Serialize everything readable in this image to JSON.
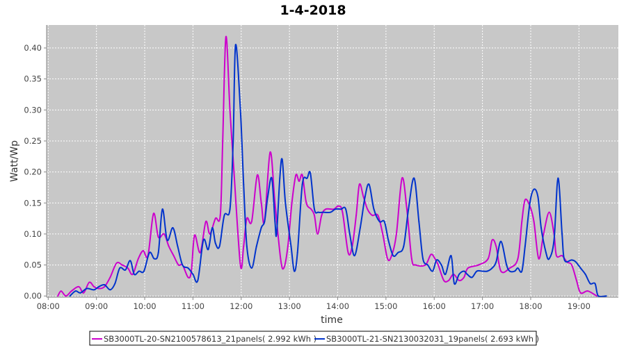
{
  "chart_data": {
    "type": "line",
    "title": "1-4-2018",
    "xlabel": "time",
    "ylabel": "Watt/Wp",
    "xlim": [
      "07:58",
      "19:49"
    ],
    "ylim": [
      -0.002,
      0.437
    ],
    "x_ticks": [
      "08:00",
      "09:00",
      "10:00",
      "11:00",
      "12:00",
      "13:00",
      "14:00",
      "15:00",
      "16:00",
      "17:00",
      "18:00",
      "19:00"
    ],
    "y_ticks": [
      "0.00",
      "0.05",
      "0.10",
      "0.15",
      "0.20",
      "0.25",
      "0.30",
      "0.35",
      "0.40"
    ],
    "grid": true,
    "legend_position": "bottom",
    "background": "#c8c8c8",
    "series": [
      {
        "name": "SB3000TL-20-SN2100578613_21panels( 2.992 kWh )",
        "color": "#cc00cc",
        "x": [
          "08:12",
          "08:16",
          "08:22",
          "08:29",
          "08:38",
          "08:44",
          "08:51",
          "08:57",
          "09:03",
          "09:10",
          "09:17",
          "09:25",
          "09:32",
          "09:39",
          "09:45",
          "09:52",
          "09:58",
          "10:04",
          "10:11",
          "10:17",
          "10:24",
          "10:30",
          "10:36",
          "10:42",
          "10:47",
          "10:54",
          "10:58",
          "11:02",
          "11:09",
          "11:16",
          "11:21",
          "11:28",
          "11:34",
          "11:37",
          "11:41",
          "11:46",
          "11:51",
          "11:59",
          "12:03",
          "12:07",
          "12:13",
          "12:20",
          "12:25",
          "12:29",
          "12:36",
          "12:42",
          "12:49",
          "12:53",
          "12:58",
          "13:03",
          "13:08",
          "13:12",
          "13:16",
          "13:21",
          "13:27",
          "13:31",
          "13:35",
          "13:40",
          "13:45",
          "13:55",
          "14:01",
          "14:06",
          "14:13",
          "14:18",
          "14:23",
          "14:27",
          "14:32",
          "14:37",
          "14:43",
          "14:50",
          "14:56",
          "15:02",
          "15:07",
          "15:13",
          "15:20",
          "15:26",
          "15:32",
          "15:37",
          "15:49",
          "15:56",
          "16:01",
          "16:05",
          "16:12",
          "16:18",
          "16:24",
          "16:31",
          "16:37",
          "16:42",
          "16:55",
          "17:07",
          "17:12",
          "17:17",
          "17:23",
          "17:34",
          "17:44",
          "17:49",
          "17:53",
          "17:59",
          "18:04",
          "18:10",
          "18:16",
          "18:23",
          "18:29",
          "18:32",
          "18:39",
          "18:45",
          "18:51",
          "18:57",
          "19:02",
          "19:11",
          "19:22"
        ],
        "y": [
          0.0,
          0.008,
          0.0,
          0.008,
          0.015,
          0.005,
          0.022,
          0.015,
          0.012,
          0.015,
          0.03,
          0.053,
          0.05,
          0.045,
          0.035,
          0.06,
          0.073,
          0.065,
          0.133,
          0.095,
          0.1,
          0.08,
          0.065,
          0.05,
          0.05,
          0.03,
          0.04,
          0.098,
          0.07,
          0.12,
          0.1,
          0.125,
          0.13,
          0.25,
          0.418,
          0.3,
          0.2,
          0.05,
          0.08,
          0.125,
          0.12,
          0.195,
          0.15,
          0.12,
          0.232,
          0.15,
          0.06,
          0.045,
          0.08,
          0.15,
          0.195,
          0.185,
          0.195,
          0.15,
          0.14,
          0.13,
          0.1,
          0.13,
          0.14,
          0.14,
          0.145,
          0.135,
          0.07,
          0.08,
          0.13,
          0.18,
          0.16,
          0.14,
          0.13,
          0.13,
          0.1,
          0.06,
          0.065,
          0.1,
          0.19,
          0.14,
          0.06,
          0.05,
          0.05,
          0.067,
          0.06,
          0.05,
          0.025,
          0.025,
          0.035,
          0.025,
          0.03,
          0.045,
          0.05,
          0.06,
          0.09,
          0.08,
          0.04,
          0.045,
          0.06,
          0.12,
          0.155,
          0.145,
          0.12,
          0.06,
          0.1,
          0.135,
          0.1,
          0.065,
          0.065,
          0.055,
          0.05,
          0.025,
          0.005,
          0.008,
          0.0
        ]
      },
      {
        "name": "SB3000TL-21-SN2130032031_19panels( 2.693 kWh )",
        "color": "#0033cc",
        "x": [
          "08:27",
          "08:34",
          "08:40",
          "08:48",
          "08:57",
          "09:03",
          "09:10",
          "09:17",
          "09:23",
          "09:29",
          "09:36",
          "09:42",
          "09:47",
          "09:53",
          "09:59",
          "10:06",
          "10:12",
          "10:17",
          "10:22",
          "10:28",
          "10:35",
          "10:41",
          "10:47",
          "10:54",
          "11:00",
          "11:06",
          "11:13",
          "11:19",
          "11:24",
          "11:28",
          "11:33",
          "11:39",
          "11:46",
          "11:50",
          "11:53",
          "11:59",
          "12:03",
          "12:07",
          "12:13",
          "12:19",
          "12:25",
          "12:29",
          "12:33",
          "12:38",
          "12:42",
          "12:44",
          "12:48",
          "12:51",
          "12:55",
          "13:02",
          "13:06",
          "13:10",
          "13:16",
          "13:22",
          "13:26",
          "13:31",
          "13:36",
          "13:42",
          "13:51",
          "13:57",
          "14:04",
          "14:10",
          "14:15",
          "14:21",
          "14:28",
          "14:34",
          "14:39",
          "14:45",
          "14:52",
          "14:58",
          "15:03",
          "15:09",
          "15:15",
          "15:22",
          "15:28",
          "15:35",
          "15:41",
          "15:46",
          "15:52",
          "15:58",
          "16:03",
          "16:09",
          "16:14",
          "16:21",
          "16:25",
          "16:31",
          "16:37",
          "16:41",
          "16:47",
          "16:53",
          "17:00",
          "17:06",
          "17:12",
          "17:17",
          "17:23",
          "17:30",
          "17:34",
          "17:40",
          "17:44",
          "17:49",
          "17:53",
          "17:59",
          "18:04",
          "18:09",
          "18:13",
          "18:19",
          "18:23",
          "18:29",
          "18:34",
          "18:39",
          "18:42",
          "18:51",
          "18:56",
          "19:02",
          "19:08",
          "19:14",
          "19:20",
          "19:24",
          "19:34"
        ],
        "y": [
          0.0,
          0.008,
          0.005,
          0.012,
          0.01,
          0.015,
          0.018,
          0.01,
          0.02,
          0.045,
          0.042,
          0.057,
          0.035,
          0.04,
          0.04,
          0.07,
          0.06,
          0.07,
          0.14,
          0.09,
          0.11,
          0.08,
          0.05,
          0.045,
          0.035,
          0.025,
          0.09,
          0.075,
          0.11,
          0.085,
          0.08,
          0.13,
          0.14,
          0.25,
          0.405,
          0.3,
          0.18,
          0.08,
          0.045,
          0.08,
          0.11,
          0.12,
          0.16,
          0.19,
          0.12,
          0.1,
          0.19,
          0.22,
          0.15,
          0.08,
          0.04,
          0.07,
          0.18,
          0.19,
          0.198,
          0.14,
          0.135,
          0.135,
          0.135,
          0.14,
          0.14,
          0.14,
          0.1,
          0.065,
          0.11,
          0.16,
          0.18,
          0.14,
          0.12,
          0.12,
          0.09,
          0.065,
          0.07,
          0.08,
          0.14,
          0.19,
          0.12,
          0.06,
          0.05,
          0.04,
          0.058,
          0.05,
          0.035,
          0.065,
          0.02,
          0.035,
          0.04,
          0.035,
          0.03,
          0.04,
          0.04,
          0.04,
          0.045,
          0.055,
          0.088,
          0.05,
          0.04,
          0.04,
          0.045,
          0.04,
          0.08,
          0.15,
          0.172,
          0.16,
          0.11,
          0.07,
          0.06,
          0.09,
          0.19,
          0.1,
          0.058,
          0.058,
          0.055,
          0.045,
          0.035,
          0.02,
          0.02,
          0.0,
          0.0
        ]
      }
    ]
  }
}
